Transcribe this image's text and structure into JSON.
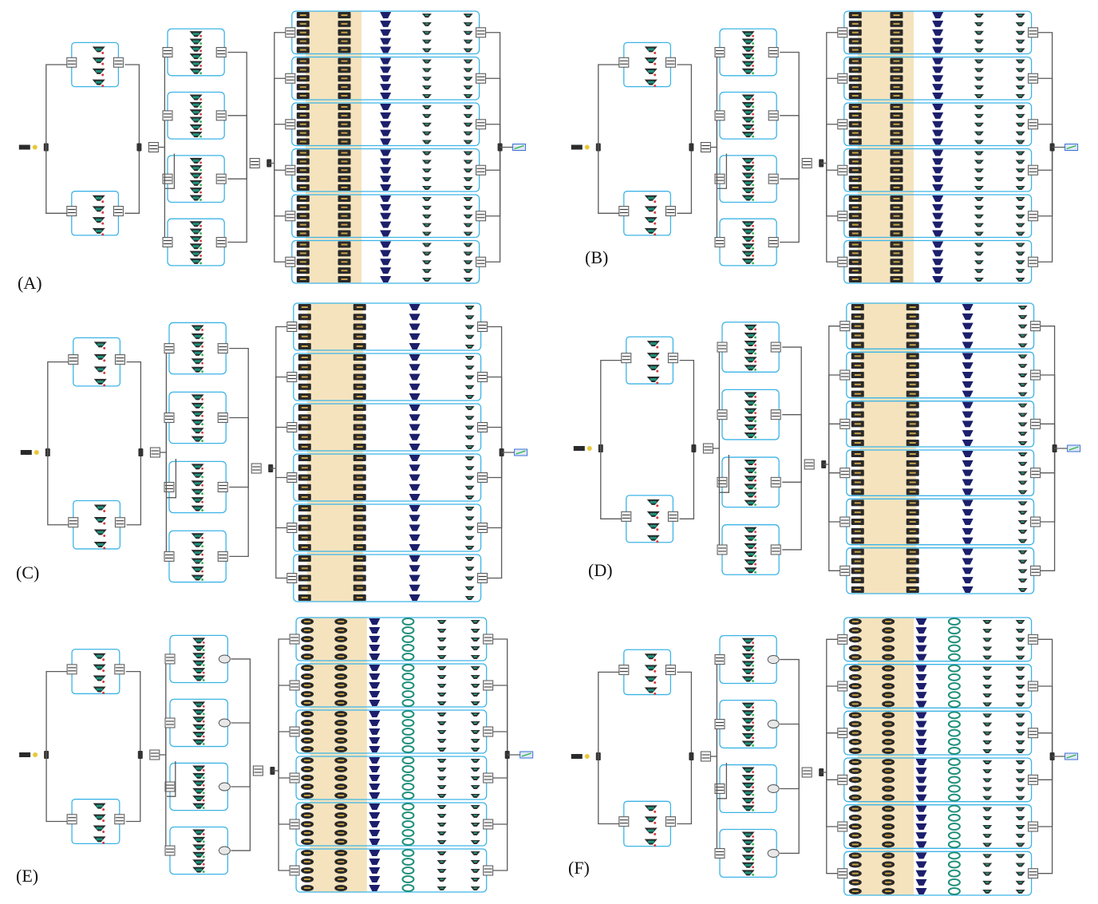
{
  "figure": {
    "panels": [
      {
        "id": "A",
        "label": "(A)",
        "stage1_blocks": 2,
        "stage2_blocks": 4,
        "stage3_blocks": 6,
        "stage3_columns": 5,
        "icon_style": "standard"
      },
      {
        "id": "B",
        "label": "(B)",
        "stage1_blocks": 2,
        "stage2_blocks": 4,
        "stage3_blocks": 6,
        "stage3_columns": 5,
        "icon_style": "standard"
      },
      {
        "id": "C",
        "label": "(C)",
        "stage1_blocks": 2,
        "stage2_blocks": 4,
        "stage3_blocks": 6,
        "stage3_columns": 4,
        "icon_style": "standard"
      },
      {
        "id": "D",
        "label": "(D)",
        "stage1_blocks": 2,
        "stage2_blocks": 4,
        "stage3_blocks": 6,
        "stage3_columns": 4,
        "icon_style": "standard"
      },
      {
        "id": "E",
        "label": "(E)",
        "stage1_blocks": 2,
        "stage2_blocks": 4,
        "stage3_blocks": 6,
        "stage3_columns": 6,
        "icon_style": "rounded"
      },
      {
        "id": "F",
        "label": "(F)",
        "stage1_blocks": 2,
        "stage2_blocks": 4,
        "stage3_blocks": 6,
        "stage3_columns": 6,
        "icon_style": "rounded"
      }
    ],
    "colors": {
      "wire": "#5a5a5a",
      "feedback_wire": "#3cb4e6",
      "highlight_band": "#f3dcae",
      "component_dark": "#2a2a2a",
      "component_teal": "#1f8f7a",
      "component_navy": "#1c1f6b",
      "component_gold": "#c9a24a",
      "marker_red": "#d33a3a",
      "marker_green": "#2eb34a",
      "source_yellow": "#e8c93a",
      "sink_blue": "#3a6fd8"
    }
  }
}
